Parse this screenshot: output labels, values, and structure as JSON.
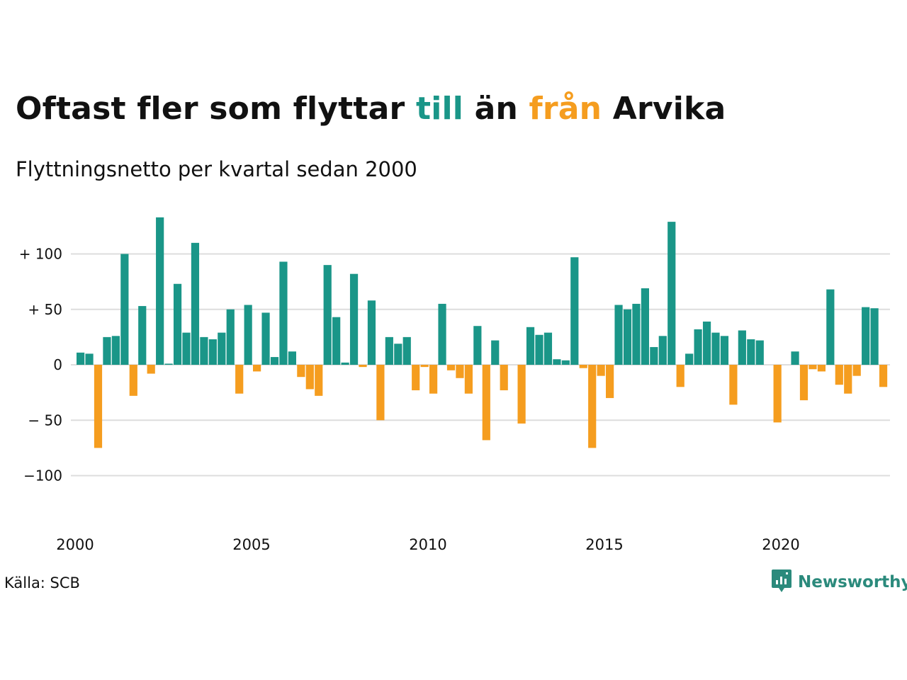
{
  "title": {
    "part1": "Oftast fler som flyttar ",
    "part2": "till",
    "part3": " än ",
    "part4": "från",
    "part5": " Arvika"
  },
  "subtitle": "Flyttningsnetto per kvartal sedan 2000",
  "source": "Källa: SCB",
  "brand": {
    "name": "Newsworthy",
    "icon": "newsworthy-logo-icon"
  },
  "colors": {
    "positive": "#1a9688",
    "negative": "#f59d1f",
    "grid": "#dddddd",
    "brand": "#2b8a7c"
  },
  "chart_data": {
    "type": "bar",
    "x_start": 2000,
    "periods_per_year": 4,
    "x_ticks": [
      "2000",
      "2005",
      "2010",
      "2015",
      "2020"
    ],
    "y_ticks": [
      {
        "value": 100,
        "label": "+ 100"
      },
      {
        "value": 50,
        "label": "+  50"
      },
      {
        "value": 0,
        "label": "0"
      },
      {
        "value": -50,
        "label": "− 50"
      },
      {
        "value": -100,
        "label": "−100"
      }
    ],
    "ylim": [
      -140,
      140
    ],
    "grid": true,
    "values": [
      11,
      10,
      -75,
      25,
      26,
      100,
      -28,
      53,
      -8,
      133,
      1,
      73,
      29,
      110,
      25,
      23,
      29,
      50,
      -26,
      54,
      -6,
      47,
      7,
      93,
      12,
      -11,
      -22,
      -28,
      90,
      43,
      2,
      82,
      -2,
      58,
      -50,
      25,
      19,
      25,
      -23,
      -2,
      -26,
      55,
      -5,
      -12,
      -26,
      35,
      -68,
      22,
      -23,
      0,
      -53,
      34,
      27,
      29,
      5,
      4,
      97,
      -3,
      -75,
      -10,
      -30,
      54,
      50,
      55,
      69,
      16,
      26,
      129,
      -20,
      10,
      32,
      39,
      29,
      26,
      -36,
      31,
      23,
      22,
      0,
      -52,
      0,
      12,
      -32,
      -4,
      -6,
      68,
      -18,
      -26,
      -10,
      52,
      51,
      -20
    ]
  }
}
